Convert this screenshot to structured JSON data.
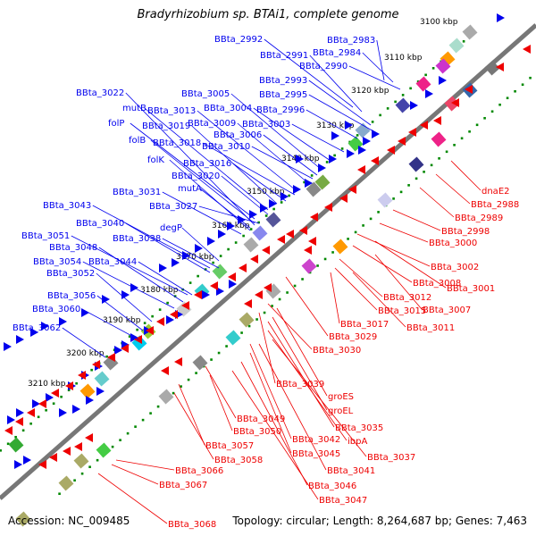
{
  "title": "Bradyrhizobium sp. BTAi1, complete genome",
  "footer": {
    "accession": "Accession: NC_009485",
    "topology": "Topology: circular; Length: 8,264,687 bp; Genes: 7,463"
  },
  "colors": {
    "forward_strand": "#0000ee",
    "reverse_strand": "#ee0000",
    "genome_line": "#777777",
    "scale_dots": "#008800"
  },
  "scale_ticks": [
    "3100 kbp",
    "3110 kbp",
    "3120 kbp",
    "3130 kbp",
    "3140 kbp",
    "3150 kbp",
    "3160 kbp",
    "3170 kbp",
    "3180 kbp",
    "3190 kbp",
    "3200 kbp",
    "3210 kbp"
  ],
  "forward_labels": [
    "BBta_2992",
    "BBta_2983",
    "BBta_2991",
    "BBta_2984",
    "BBta_2990",
    "BBta_2993",
    "BBta_2995",
    "BBta_3022",
    "BBta_3005",
    "mutB",
    "BBta_3013",
    "BBta_3004",
    "BBta_2996",
    "folP",
    "BBta_3019",
    "BBta_3009",
    "BBta_3003",
    "BBta_3006",
    "folB",
    "BBta_3018",
    "BBta_3010",
    "folK",
    "BBta_3016",
    "BBta_3020",
    "mutA",
    "BBta_3031",
    "BBta_3027",
    "BBta_3043",
    "BBta_3040",
    "degP",
    "BBta_3038",
    "BBta_3051",
    "BBta_3048",
    "BBta_3054",
    "BBta_3044",
    "BBta_3052",
    "BBta_3056",
    "BBta_3060",
    "BBta_3062"
  ],
  "reverse_labels": [
    "dnaE2",
    "BBta_2988",
    "BBta_2989",
    "BBta_2998",
    "BBta_3000",
    "BBta_3002",
    "BBta_3008",
    "BBta_3001",
    "BBta_3012",
    "BBta_3007",
    "BBta_3015",
    "BBta_3017",
    "BBta_3011",
    "BBta_3029",
    "BBta_3030",
    "BBta_3039",
    "groES",
    "groEL",
    "BBta_3049",
    "BBta_3035",
    "BBta_3050",
    "BBta_3042",
    "ibpA",
    "BBta_3057",
    "BBta_3045",
    "BBta_3037",
    "BBta_3058",
    "BBta_3041",
    "BBta_3066",
    "BBta_3046",
    "BBta_3067",
    "BBta_3047",
    "BBta_3068"
  ]
}
